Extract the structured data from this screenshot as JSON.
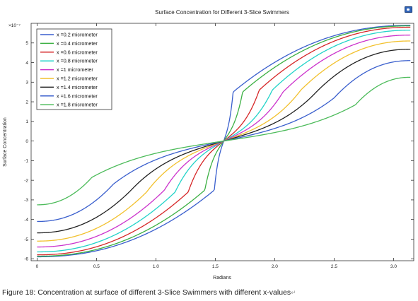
{
  "toolbar": {
    "icon": "window-icon"
  },
  "caption": "Figure 18: Concentration at surface of different 3-Slice Swimmers with different x-values",
  "caption_mark": "↵",
  "chart_data": {
    "type": "line",
    "title": "Surface Concentration for Different 3-Slice Swimmers",
    "xlabel": "Radians",
    "ylabel": "Surface Concentration",
    "y_multiplier": "×10⁻⁷",
    "xlim": [
      -0.05,
      3.17
    ],
    "ylim": [
      -6.1,
      6.0
    ],
    "x_ticks": [
      "0",
      "0.5",
      "1.0",
      "1.5",
      "2.0",
      "2.5",
      "3.0"
    ],
    "x_tick_values": [
      0,
      0.5,
      1.0,
      1.5,
      2.0,
      2.5,
      3.0
    ],
    "y_ticks": [
      "-6",
      "-5",
      "-4",
      "-3",
      "-2",
      "-1",
      "0",
      "1",
      "2",
      "3",
      "4",
      "5"
    ],
    "y_tick_values": [
      -6,
      -5,
      -4,
      -3,
      -2,
      -1,
      0,
      1,
      2,
      3,
      4,
      5
    ],
    "grid": false,
    "legend_position": "top-left",
    "series": [
      {
        "name": "x =0.2 micrometer",
        "color": "#3a5fcd",
        "end": 5.9,
        "knee": 1.65,
        "knee_y": 2.5
      },
      {
        "name": "x =0.4 micrometer",
        "color": "#3cb043",
        "end": 5.87,
        "knee": 1.73,
        "knee_y": 2.5
      },
      {
        "name": "x =0.6 micrometer",
        "color": "#d62728",
        "end": 5.8,
        "knee": 1.87,
        "knee_y": 2.6
      },
      {
        "name": "x =0.8 micrometer",
        "color": "#22d3c8",
        "end": 5.65,
        "knee": 1.98,
        "knee_y": 2.6
      },
      {
        "name": "x =1 micrometer",
        "color": "#cc33cc",
        "end": 5.4,
        "knee": 2.07,
        "knee_y": 2.5
      },
      {
        "name": "x =1.2 micrometer",
        "color": "#f2c12e",
        "end": 5.1,
        "knee": 2.22,
        "knee_y": 2.6
      },
      {
        "name": "x =1.4 micrometer",
        "color": "#222222",
        "end": 4.68,
        "knee": 2.35,
        "knee_y": 2.5
      },
      {
        "name": "x =1.6 micrometer",
        "color": "#3a5fcd",
        "end": 4.1,
        "knee": 2.5,
        "knee_y": 2.2
      },
      {
        "name": "x =1.8 micrometer",
        "color": "#4cbb5a",
        "end": 3.25,
        "knee": 2.68,
        "knee_y": 1.85
      }
    ]
  }
}
